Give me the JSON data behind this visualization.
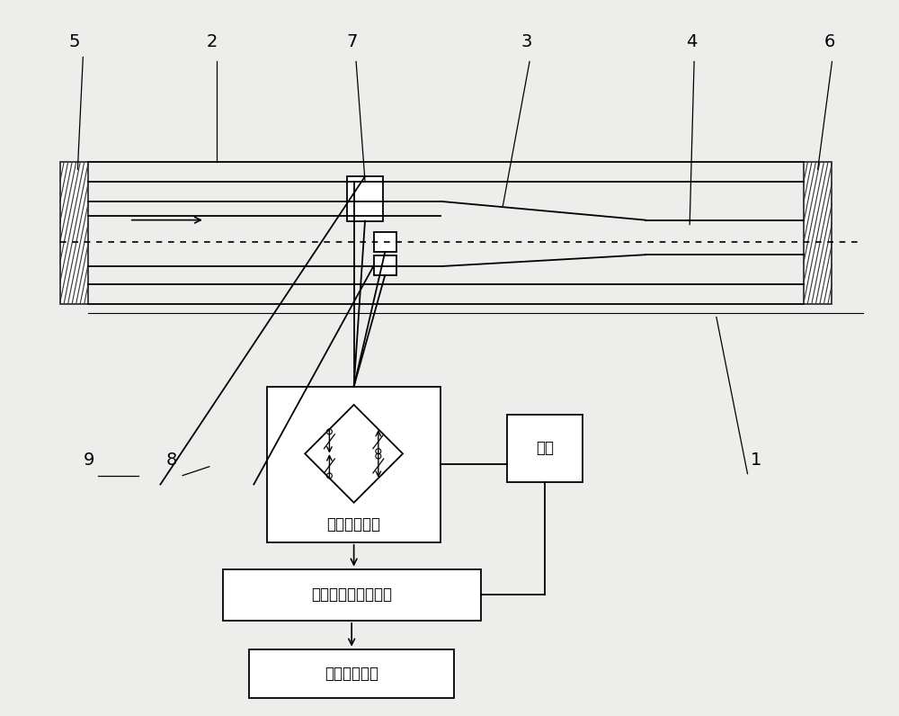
{
  "bg_color": "#ededeb",
  "line_color": "#000000",
  "box1_text": "全桥差动结构",
  "box2_text": "信号采集与放大电路",
  "box3_text": "数据处理电路",
  "box4_text": "电源"
}
